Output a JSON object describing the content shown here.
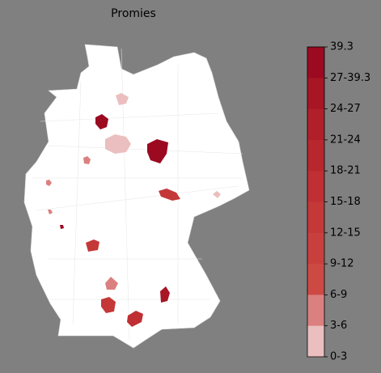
{
  "title": "Promies",
  "colorbar": {
    "labels": [
      "39.3",
      "27-39.3",
      "24-27",
      "21-24",
      "18-21",
      "15-18",
      "12-15",
      "9-12",
      "6-9",
      "3-6",
      "0-3"
    ],
    "colors": [
      "#9b0a21",
      "#a81525",
      "#b11f2a",
      "#b9272e",
      "#bf2f33",
      "#c43838",
      "#c8403d",
      "#cd4a44",
      "#db8080",
      "#ebbfbf",
      "#ffffff"
    ]
  }
}
